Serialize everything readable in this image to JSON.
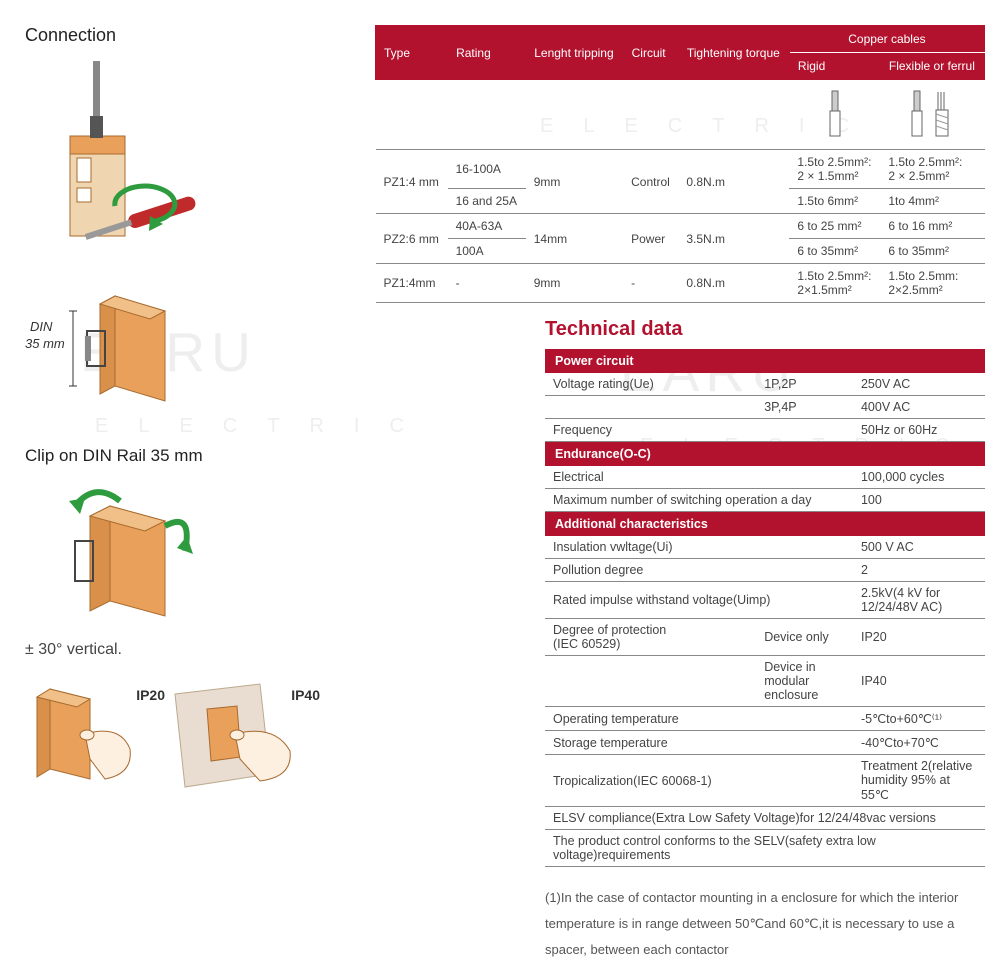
{
  "watermark_main": "EARU",
  "watermark_sub": "ELECTRIC",
  "left": {
    "connection_title": "Connection",
    "din_label": "DIN\n35 mm",
    "clip_title": "Clip on DIN Rail 35 mm",
    "angle_label": "± 30° vertical.",
    "ip20_label": "IP20",
    "ip40_label": "IP40"
  },
  "spec_table": {
    "headers": {
      "type": "Type",
      "rating": "Rating",
      "length": "Lenght tripping",
      "circuit": "Circuit",
      "torque": "Tightening torque",
      "copper": "Copper cables",
      "rigid": "Rigid",
      "flex": "Flexible or ferrul"
    },
    "rows": [
      {
        "type": "PZ1:4 mm",
        "rating": "16-100A",
        "length": "9mm",
        "circuit": "Control",
        "torque": "0.8N.m",
        "rigid": "1.5to 2.5mm²:\n2 × 1.5mm²",
        "flex": "1.5to 2.5mm²:\n2 × 2.5mm²"
      },
      {
        "type": "",
        "rating": "16 and 25A",
        "length": "",
        "circuit": "",
        "torque": "",
        "rigid": "1.5to 6mm²",
        "flex": "1to 4mm²"
      },
      {
        "type": "PZ2:6 mm",
        "rating": "40A-63A",
        "length": "14mm",
        "circuit": "Power",
        "torque": "3.5N.m",
        "rigid": "6 to 25 mm²",
        "flex": "6 to 16 mm²"
      },
      {
        "type": "",
        "rating": "100A",
        "length": "",
        "circuit": "",
        "torque": "",
        "rigid": "6 to 35mm²",
        "flex": "6 to 35mm²"
      },
      {
        "type": "PZ1:4mm",
        "rating": "-",
        "length": "9mm",
        "circuit": "-",
        "torque": "0.8N.m",
        "rigid": "1.5to 2.5mm²:\n2×1.5mm²",
        "flex": "1.5to 2.5mm:\n2×2.5mm²"
      }
    ]
  },
  "tech": {
    "title": "Technical data",
    "sections": [
      {
        "header": "Power circuit",
        "rows": [
          {
            "l": "Voltage rating(Ue)",
            "m": "1P,2P",
            "r": "250V AC"
          },
          {
            "l": "",
            "m": "3P,4P",
            "r": "400V AC"
          },
          {
            "l": "Frequency",
            "m": "",
            "r": "50Hz or 60Hz"
          }
        ]
      },
      {
        "header": "Endurance(O-C)",
        "rows": [
          {
            "l": "Electrical",
            "m": "",
            "r": "100,000 cycles"
          },
          {
            "l": "Maximum number of switching operation a day",
            "m": "",
            "r": "100"
          }
        ]
      },
      {
        "header": "Additional characteristics",
        "rows": [
          {
            "l": "Insulation vwltage(Ui)",
            "m": "",
            "r": "500 V AC"
          },
          {
            "l": "Pollution degree",
            "m": "",
            "r": "2"
          },
          {
            "l": "Rated impulse withstand voltage(Uimp)",
            "m": "",
            "r": "2.5kV(4 kV for 12/24/48V AC)"
          },
          {
            "l": "Degree of protection\n(IEC 60529)",
            "m": "Device only",
            "r": "IP20"
          },
          {
            "l": "",
            "m": "Device in modular enclosure",
            "r": "IP40"
          },
          {
            "l": "Operating temperature",
            "m": "",
            "r": "-5℃to+60℃⁽¹⁾"
          },
          {
            "l": "Storage temperature",
            "m": "",
            "r": "-40℃to+70℃"
          },
          {
            "l": "Tropicalization(IEC 60068-1)",
            "m": "",
            "r": "Treatment 2(relative humidity 95% at 55℃"
          },
          {
            "l": "ELSV compliance(Extra Low Safety Voltage)for 12/24/48vac versions",
            "m": "",
            "r": ""
          },
          {
            "l": "The product control conforms to the SELV(safety extra low voltage)requirements",
            "m": "",
            "r": ""
          }
        ]
      }
    ],
    "footnote": "(1)In the case of contactor mounting in a enclosure for which the interior temperature is in range detween 50℃and 60℃,it is necessary to use a spacer, between each contactor"
  },
  "colors": {
    "brand_red": "#b3122e",
    "device_orange": "#e8a05a",
    "device_stroke": "#a86a2e",
    "screwdriver_red": "#c12a2a",
    "metal": "#888888"
  }
}
